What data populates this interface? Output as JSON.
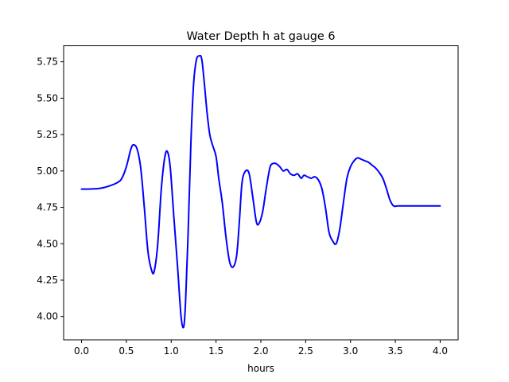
{
  "chart_data": {
    "type": "line",
    "title": "Water Depth h at gauge 6",
    "xlabel": "hours",
    "ylabel": "",
    "xlim": [
      -0.2,
      4.2
    ],
    "ylim": [
      3.84,
      5.86
    ],
    "grid": false,
    "xticks": [
      0.0,
      0.5,
      1.0,
      1.5,
      2.0,
      2.5,
      3.0,
      3.5,
      4.0
    ],
    "xtick_labels": [
      "0.0",
      "0.5",
      "1.0",
      "1.5",
      "2.0",
      "2.5",
      "3.0",
      "3.5",
      "4.0"
    ],
    "yticks": [
      4.0,
      4.25,
      4.5,
      4.75,
      5.0,
      5.25,
      5.5,
      5.75
    ],
    "ytick_labels": [
      "4.00",
      "4.25",
      "4.50",
      "4.75",
      "5.00",
      "5.25",
      "5.50",
      "5.75"
    ],
    "series": [
      {
        "color": "#0000ff",
        "x": [
          0.0,
          0.1,
          0.2,
          0.3,
          0.4,
          0.45,
          0.5,
          0.55,
          0.58,
          0.62,
          0.66,
          0.7,
          0.74,
          0.78,
          0.81,
          0.85,
          0.89,
          0.93,
          0.96,
          0.99,
          1.03,
          1.07,
          1.11,
          1.14,
          1.16,
          1.19,
          1.22,
          1.25,
          1.28,
          1.31,
          1.34,
          1.37,
          1.4,
          1.43,
          1.46,
          1.5,
          1.53,
          1.57,
          1.61,
          1.65,
          1.69,
          1.73,
          1.76,
          1.79,
          1.83,
          1.87,
          1.91,
          1.95,
          1.98,
          2.02,
          2.06,
          2.1,
          2.13,
          2.17,
          2.21,
          2.25,
          2.29,
          2.33,
          2.37,
          2.41,
          2.45,
          2.48,
          2.52,
          2.56,
          2.6,
          2.64,
          2.68,
          2.72,
          2.76,
          2.8,
          2.84,
          2.88,
          2.92,
          2.96,
          3.0,
          3.04,
          3.08,
          3.12,
          3.16,
          3.2,
          3.24,
          3.28,
          3.32,
          3.36,
          3.4,
          3.44,
          3.48,
          3.52,
          3.56,
          3.6,
          3.64,
          3.68,
          3.72,
          3.76,
          3.8,
          3.84,
          3.88,
          3.92,
          3.96,
          4.0
        ],
        "y": [
          4.875,
          4.876,
          4.88,
          4.895,
          4.92,
          4.95,
          5.03,
          5.15,
          5.18,
          5.15,
          5.02,
          4.75,
          4.45,
          4.32,
          4.31,
          4.5,
          4.88,
          5.1,
          5.13,
          5.02,
          4.68,
          4.35,
          4.0,
          3.93,
          4.1,
          4.6,
          5.2,
          5.6,
          5.76,
          5.79,
          5.77,
          5.6,
          5.4,
          5.25,
          5.18,
          5.1,
          4.95,
          4.78,
          4.55,
          4.38,
          4.34,
          4.42,
          4.65,
          4.92,
          5.0,
          4.98,
          4.82,
          4.65,
          4.64,
          4.72,
          4.88,
          5.02,
          5.05,
          5.05,
          5.03,
          5.0,
          5.01,
          4.98,
          4.97,
          4.98,
          4.95,
          4.97,
          4.96,
          4.95,
          4.96,
          4.94,
          4.88,
          4.75,
          4.58,
          4.52,
          4.5,
          4.6,
          4.78,
          4.95,
          5.03,
          5.07,
          5.09,
          5.08,
          5.07,
          5.06,
          5.04,
          5.02,
          4.99,
          4.95,
          4.88,
          4.8,
          4.76,
          4.76,
          4.76,
          4.76,
          4.76,
          4.76,
          4.76,
          4.76,
          4.76,
          4.76,
          4.76,
          4.76,
          4.76,
          4.76
        ]
      }
    ]
  }
}
